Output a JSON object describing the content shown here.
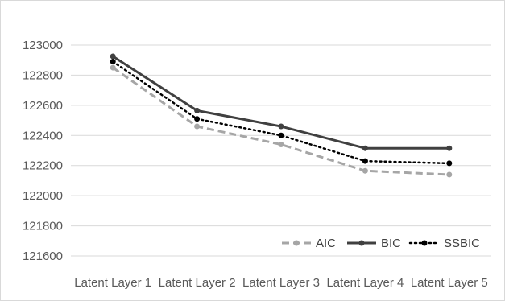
{
  "chart_data": {
    "type": "line",
    "categories": [
      "Latent Layer 1",
      "Latent Layer 2",
      "Latent Layer 3",
      "Latent Layer 4",
      "Latent Layer 5"
    ],
    "series": [
      {
        "name": "AIC",
        "values": [
          122850,
          122460,
          122340,
          122165,
          122140
        ],
        "color": "#a6a6a6",
        "style": "dashed"
      },
      {
        "name": "BIC",
        "values": [
          122925,
          122565,
          122460,
          122315,
          122315
        ],
        "color": "#404040",
        "style": "solid"
      },
      {
        "name": "SSBIC",
        "values": [
          122890,
          122510,
          122400,
          122230,
          122215
        ],
        "color": "#000000",
        "style": "dotted"
      }
    ],
    "title": "",
    "xlabel": "",
    "ylabel": "",
    "ylim": [
      121500,
      123100
    ],
    "yticks": [
      121600,
      121800,
      122000,
      122200,
      122400,
      122600,
      122800,
      123000
    ],
    "grid": true,
    "legend_position": "bottom-right"
  }
}
